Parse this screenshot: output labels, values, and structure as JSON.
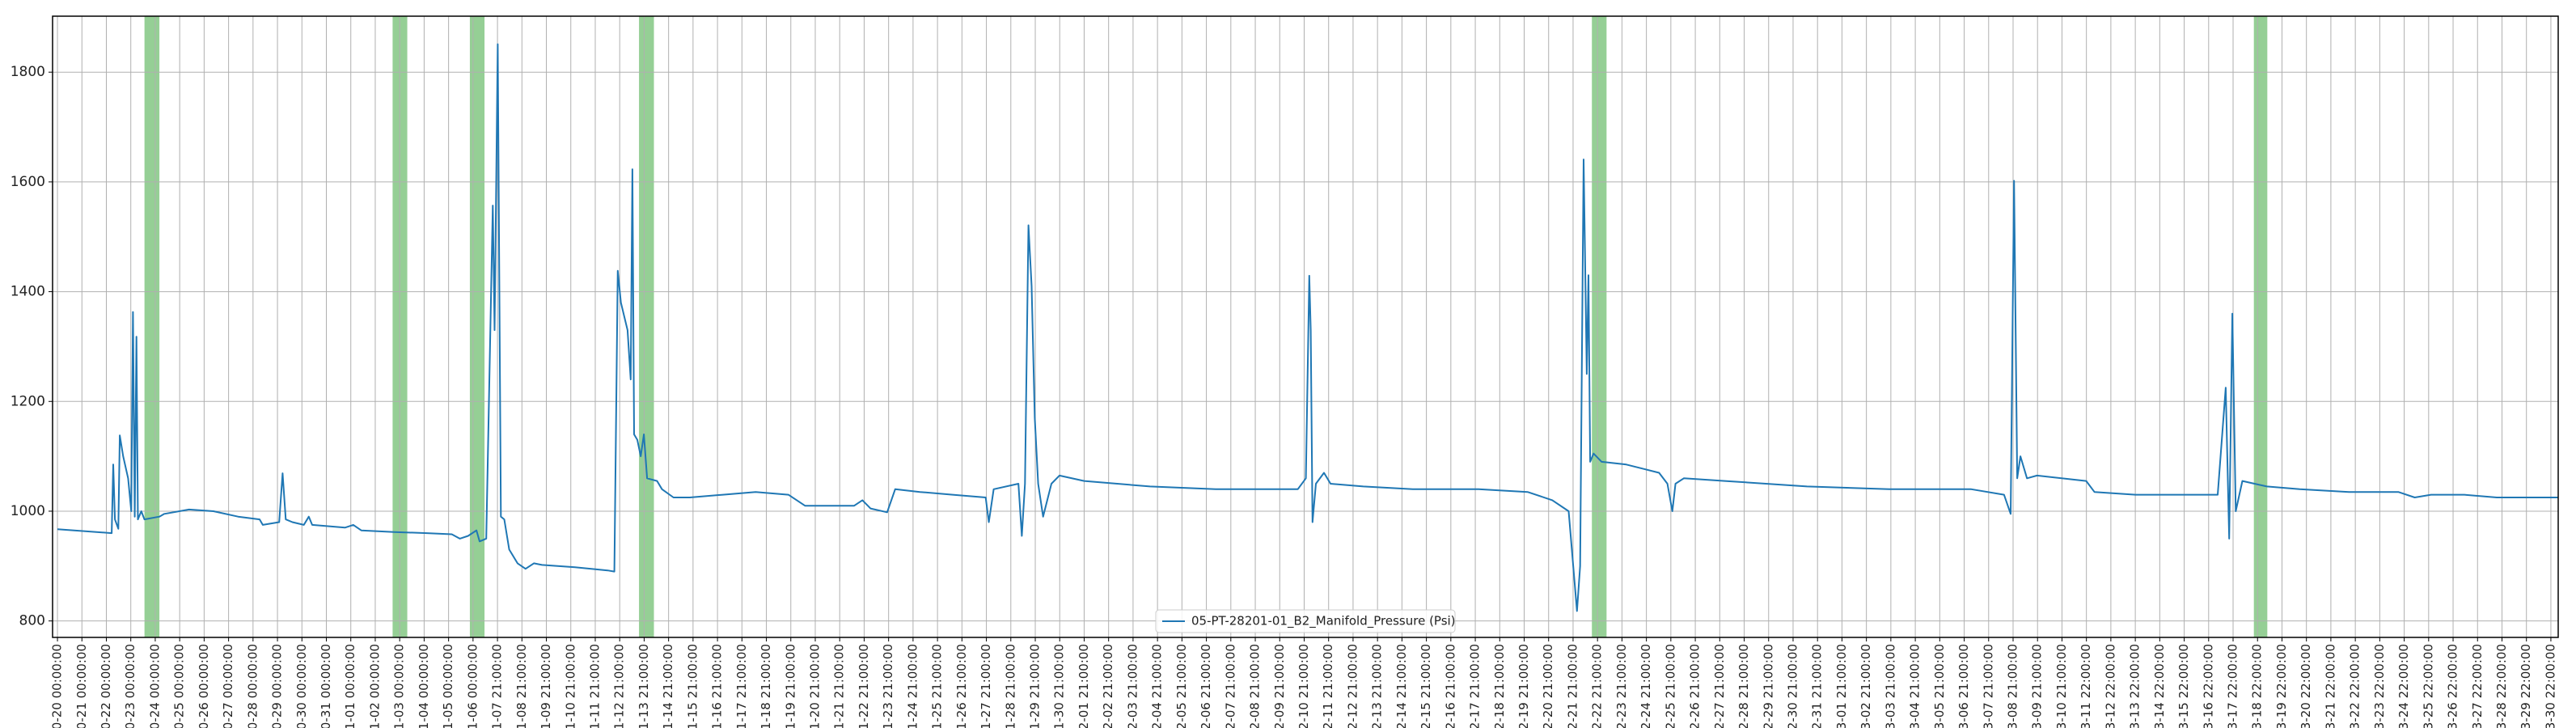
{
  "chart_data": {
    "type": "line",
    "x": [
      0,
      2.22,
      2.28,
      2.35,
      2.49,
      2.55,
      2.69,
      2.89,
      3.02,
      3.09,
      3.16,
      3.23,
      3.29,
      3.43,
      3.56,
      4.17,
      4.37,
      5.38,
      6.38,
      7.39,
      8.27,
      8.4,
      9.07,
      9.21,
      9.34,
      9.61,
      10.08,
      10.28,
      10.42,
      11.76,
      12.1,
      12.43,
      13.78,
      15.12,
      16.13,
      16.46,
      16.8,
      17.14,
      17.27,
      17.54,
      17.81,
      17.88,
      18.01,
      18.14,
      18.28,
      18.48,
      18.82,
      19.15,
      19.49,
      19.82,
      21.17,
      22.51,
      22.78,
      22.92,
      23.05,
      23.32,
      23.45,
      23.52,
      23.59,
      23.72,
      23.86,
      23.99,
      24.12,
      24.53,
      24.73,
      25.2,
      25.87,
      27.22,
      28.56,
      29.9,
      30.58,
      31.25,
      32.59,
      32.93,
      33.26,
      33.94,
      34.27,
      35.28,
      36.62,
      37.97,
      38.1,
      38.3,
      39.31,
      39.45,
      39.58,
      39.72,
      39.85,
      39.98,
      40.12,
      40.32,
      40.66,
      40.99,
      42.0,
      44.69,
      47.38,
      50.74,
      51.07,
      51.21,
      51.27,
      51.34,
      51.48,
      51.81,
      52.08,
      53.42,
      55.44,
      58.13,
      60.14,
      61.15,
      61.82,
      62.16,
      62.29,
      62.43,
      62.56,
      62.63,
      62.7,
      62.84,
      63.17,
      64.18,
      65.52,
      65.86,
      66.06,
      66.19,
      66.53,
      68.21,
      71.57,
      74.93,
      78.29,
      79.63,
      79.9,
      80.04,
      80.17,
      80.3,
      80.57,
      80.98,
      82.99,
      83.33,
      85.01,
      88.37,
      88.7,
      88.84,
      88.97,
      89.11,
      89.38,
      90.38,
      91.73,
      93.74,
      95.76,
      96.43,
      97.1,
      98.45,
      99.79,
      102.28
    ],
    "series": [
      {
        "name": "05-PT-28201-01_B2_Manifold_Pressure (Psi)",
        "color": "#1f77b4",
        "values": [
          967,
          960,
          1085,
          985,
          968,
          1138,
          1100,
          1060,
          1000,
          1363,
          990,
          1318,
          985,
          1000,
          985,
          990,
          995,
          1003,
          1000,
          990,
          985,
          975,
          980,
          1069,
          985,
          980,
          975,
          990,
          975,
          970,
          975,
          965,
          962,
          960,
          958,
          950,
          955,
          965,
          945,
          950,
          1557,
          1330,
          1851,
          990,
          985,
          930,
          905,
          895,
          905,
          902,
          898,
          892,
          890,
          1438,
          1380,
          1330,
          1240,
          1623,
          1140,
          1130,
          1100,
          1140,
          1060,
          1055,
          1040,
          1025,
          1025,
          1030,
          1035,
          1030,
          1010,
          1010,
          1010,
          1020,
          1005,
          998,
          1040,
          1035,
          1030,
          1025,
          980,
          1040,
          1050,
          955,
          1050,
          1521,
          1410,
          1170,
          1050,
          990,
          1050,
          1065,
          1055,
          1045,
          1040,
          1040,
          1060,
          1429,
          1330,
          980,
          1050,
          1070,
          1050,
          1045,
          1040,
          1040,
          1035,
          1020,
          1000,
          818,
          900,
          1641,
          1250,
          1430,
          1090,
          1105,
          1090,
          1085,
          1070,
          1050,
          1000,
          1050,
          1060,
          1055,
          1045,
          1040,
          1040,
          1030,
          995,
          1602,
          1060,
          1100,
          1060,
          1065,
          1055,
          1035,
          1030,
          1030,
          1225,
          950,
          1360,
          1000,
          1055,
          1045,
          1040,
          1035,
          1035,
          1025,
          1030,
          1030,
          1025,
          1025
        ]
      }
    ],
    "spans": [
      [
        3.56,
        4.17
      ],
      [
        13.71,
        14.31
      ],
      [
        16.87,
        17.47
      ],
      [
        23.79,
        24.4
      ],
      [
        62.77,
        63.37
      ],
      [
        89.85,
        90.4
      ]
    ],
    "span_color": "#2ca02c",
    "xlim": [
      -0.2,
      102.3
    ],
    "ylim": [
      770,
      1902
    ],
    "yticks": [
      800,
      1000,
      1200,
      1400,
      1600,
      1800
    ],
    "grid": true,
    "legend": "lower center",
    "xticks": [
      {
        "value": 0,
        "label": "0-20 00:00:00"
      },
      {
        "value": 1,
        "label": "0-21 00:00:00"
      },
      {
        "value": 2,
        "label": "0-22 00:00:00"
      },
      {
        "value": 3,
        "label": "0-23 00:00:00"
      },
      {
        "value": 4,
        "label": "0-24 00:00:00"
      },
      {
        "value": 5,
        "label": "0-25 00:00:00"
      },
      {
        "value": 6,
        "label": "0-26 00:00:00"
      },
      {
        "value": 7,
        "label": "0-27 00:00:00"
      },
      {
        "value": 8,
        "label": "0-28 00:00:00"
      },
      {
        "value": 9,
        "label": "0-29 00:00:00"
      },
      {
        "value": 10,
        "label": "0-30 00:00:00"
      },
      {
        "value": 11,
        "label": "0-31 00:00:00"
      },
      {
        "value": 12,
        "label": "1-01 00:00:00"
      },
      {
        "value": 13,
        "label": "1-02 00:00:00"
      },
      {
        "value": 14,
        "label": "1-03 00:00:00"
      },
      {
        "value": 15,
        "label": "1-04 00:00:00"
      },
      {
        "value": 16,
        "label": "1-05 00:00:00"
      },
      {
        "value": 17,
        "label": "1-06 00:00:00"
      },
      {
        "value": 18,
        "label": "1-07 21:00:00"
      },
      {
        "value": 19,
        "label": "1-08 21:00:00"
      },
      {
        "value": 20,
        "label": "1-09 21:00:00"
      },
      {
        "value": 21,
        "label": "1-10 21:00:00"
      },
      {
        "value": 22,
        "label": "1-11 21:00:00"
      },
      {
        "value": 23,
        "label": "1-12 21:00:00"
      },
      {
        "value": 24,
        "label": "1-13 21:00:00"
      },
      {
        "value": 25,
        "label": "1-14 21:00:00"
      },
      {
        "value": 26,
        "label": "1-15 21:00:00"
      },
      {
        "value": 27,
        "label": "1-16 21:00:00"
      },
      {
        "value": 28,
        "label": "1-17 21:00:00"
      },
      {
        "value": 29,
        "label": "1-18 21:00:00"
      },
      {
        "value": 30,
        "label": "1-19 21:00:00"
      },
      {
        "value": 31,
        "label": "1-20 21:00:00"
      },
      {
        "value": 32,
        "label": "1-21 21:00:00"
      },
      {
        "value": 33,
        "label": "1-22 21:00:00"
      },
      {
        "value": 34,
        "label": "1-23 21:00:00"
      },
      {
        "value": 35,
        "label": "1-24 21:00:00"
      },
      {
        "value": 36,
        "label": "1-25 21:00:00"
      },
      {
        "value": 37,
        "label": "1-26 21:00:00"
      },
      {
        "value": 38,
        "label": "1-27 21:00:00"
      },
      {
        "value": 39,
        "label": "1-28 21:00:00"
      },
      {
        "value": 40,
        "label": "1-29 21:00:00"
      },
      {
        "value": 41,
        "label": "1-30 21:00:00"
      },
      {
        "value": 42,
        "label": "2-01 21:00:00"
      },
      {
        "value": 43,
        "label": "2-02 21:00:00"
      },
      {
        "value": 44,
        "label": "2-03 21:00:00"
      },
      {
        "value": 45,
        "label": "2-04 21:00:00"
      },
      {
        "value": 46,
        "label": "2-05 21:00:00"
      },
      {
        "value": 47,
        "label": "2-06 21:00:00"
      },
      {
        "value": 48,
        "label": "2-07 21:00:00"
      },
      {
        "value": 49,
        "label": "2-08 21:00:00"
      },
      {
        "value": 50,
        "label": "2-09 21:00:00"
      },
      {
        "value": 51,
        "label": "2-10 21:00:00"
      },
      {
        "value": 52,
        "label": "2-11 21:00:00"
      },
      {
        "value": 53,
        "label": "2-12 21:00:00"
      },
      {
        "value": 54,
        "label": "2-13 21:00:00"
      },
      {
        "value": 55,
        "label": "2-14 21:00:00"
      },
      {
        "value": 56,
        "label": "2-15 21:00:00"
      },
      {
        "value": 57,
        "label": "2-16 21:00:00"
      },
      {
        "value": 58,
        "label": "2-17 21:00:00"
      },
      {
        "value": 59,
        "label": "2-18 21:00:00"
      },
      {
        "value": 60,
        "label": "2-19 21:00:00"
      },
      {
        "value": 61,
        "label": "2-20 21:00:00"
      },
      {
        "value": 62,
        "label": "2-21 21:00:00"
      },
      {
        "value": 63,
        "label": "2-22 21:00:00"
      },
      {
        "value": 64,
        "label": "2-23 21:00:00"
      },
      {
        "value": 65,
        "label": "2-24 21:00:00"
      },
      {
        "value": 66,
        "label": "2-25 21:00:00"
      },
      {
        "value": 67,
        "label": "2-26 21:00:00"
      },
      {
        "value": 68,
        "label": "2-27 21:00:00"
      },
      {
        "value": 69,
        "label": "2-28 21:00:00"
      },
      {
        "value": 70,
        "label": "2-29 21:00:00"
      },
      {
        "value": 71,
        "label": "2-30 21:00:00"
      },
      {
        "value": 72,
        "label": "2-31 21:00:00"
      },
      {
        "value": 73,
        "label": "3-01 21:00:00"
      },
      {
        "value": 74,
        "label": "3-02 21:00:00"
      },
      {
        "value": 75,
        "label": "3-03 21:00:00"
      },
      {
        "value": 76,
        "label": "3-04 21:00:00"
      },
      {
        "value": 77,
        "label": "3-05 21:00:00"
      },
      {
        "value": 78,
        "label": "3-06 21:00:00"
      },
      {
        "value": 79,
        "label": "3-07 21:00:00"
      },
      {
        "value": 80,
        "label": "3-08 21:00:00"
      },
      {
        "value": 81,
        "label": "3-09 21:00:00"
      },
      {
        "value": 82,
        "label": "3-10 21:00:00"
      },
      {
        "value": 83,
        "label": "3-11 22:00:00"
      },
      {
        "value": 84,
        "label": "3-12 22:00:00"
      },
      {
        "value": 85,
        "label": "3-13 22:00:00"
      },
      {
        "value": 86,
        "label": "3-14 22:00:00"
      },
      {
        "value": 87,
        "label": "3-15 22:00:00"
      },
      {
        "value": 88,
        "label": "3-16 22:00:00"
      },
      {
        "value": 89,
        "label": "3-17 22:00:00"
      },
      {
        "value": 90,
        "label": "3-18 22:00:00"
      },
      {
        "value": 91,
        "label": "3-19 22:00:00"
      },
      {
        "value": 92,
        "label": "3-20 22:00:00"
      },
      {
        "value": 93,
        "label": "3-21 22:00:00"
      },
      {
        "value": 94,
        "label": "3-22 22:00:00"
      },
      {
        "value": 95,
        "label": "3-23 22:00:00"
      },
      {
        "value": 96,
        "label": "3-24 22:00:00"
      },
      {
        "value": 97,
        "label": "3-25 22:00:00"
      },
      {
        "value": 98,
        "label": "3-26 22:00:00"
      },
      {
        "value": 99,
        "label": "3-27 22:00:00"
      },
      {
        "value": 100,
        "label": "3-28 22:00:00"
      },
      {
        "value": 101,
        "label": "3-29 22:00:00"
      },
      {
        "value": 102,
        "label": "3-30 22:00:00"
      }
    ]
  }
}
